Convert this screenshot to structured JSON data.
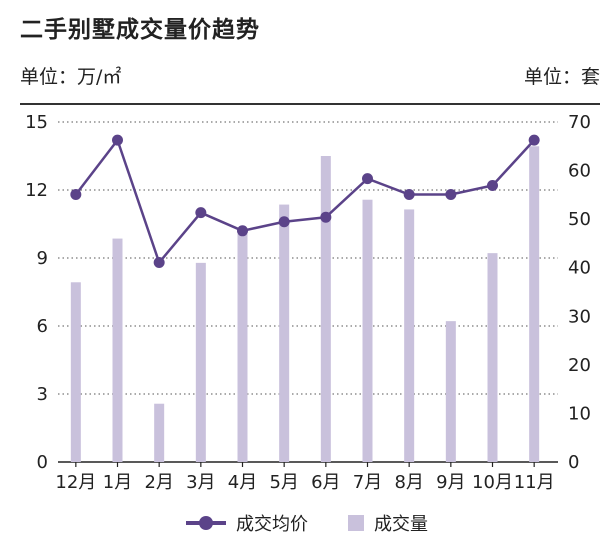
{
  "header": {
    "title": "二手别墅成交量价趋势",
    "unit_left": "单位：万/㎡",
    "unit_right": "单位：套"
  },
  "legend": {
    "line_label": "成交均价",
    "bar_label": "成交量"
  },
  "colors": {
    "line": "#5b4389",
    "bar": "#c9c1dc",
    "grid": "#555555"
  },
  "chart_data": {
    "type": "bar",
    "categories": [
      "12月",
      "1月",
      "2月",
      "3月",
      "4月",
      "5月",
      "6月",
      "7月",
      "8月",
      "9月",
      "10月",
      "11月"
    ],
    "series": [
      {
        "name": "成交量",
        "type": "bar",
        "axis": "right",
        "values": [
          37,
          46,
          12,
          41,
          47,
          53,
          63,
          54,
          52,
          29,
          43,
          65
        ]
      },
      {
        "name": "成交均价",
        "type": "line",
        "axis": "left",
        "values": [
          11.8,
          14.2,
          8.8,
          11.0,
          10.2,
          10.6,
          10.8,
          12.5,
          11.8,
          11.8,
          12.2,
          14.2
        ]
      }
    ],
    "y_left": {
      "min": 0,
      "max": 15,
      "ticks": [
        "0",
        "3",
        "6",
        "9",
        "12",
        "15"
      ]
    },
    "y_right": {
      "min": 0,
      "max": 70,
      "ticks": [
        "0",
        "10",
        "20",
        "30",
        "40",
        "50",
        "60",
        "70"
      ]
    },
    "grid": "dotted horizontal at left-axis ticks",
    "legend_position": "bottom"
  }
}
